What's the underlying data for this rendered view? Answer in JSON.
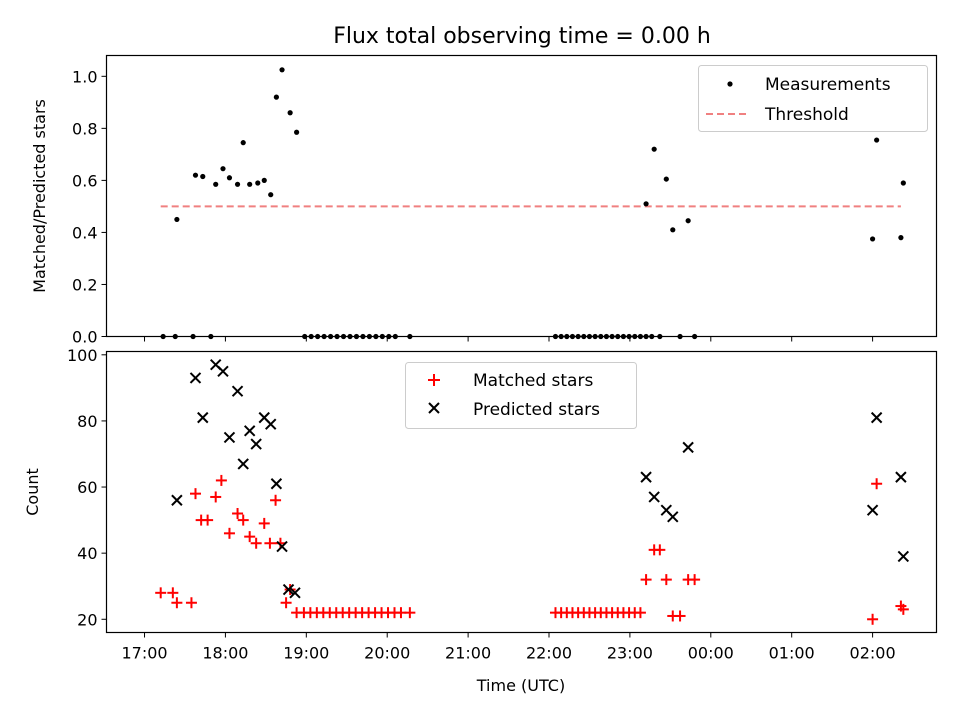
{
  "chart_data": [
    {
      "type": "scatter",
      "title": "Flux total observing time = 0.00 h",
      "ylabel": "Matched/Predicted stars",
      "xlabel": "",
      "x_unit": "hours since 17:00 UTC",
      "xlim": [
        -0.47,
        9.79
      ],
      "ylim": [
        0,
        1.08
      ],
      "yticks": [
        0.0,
        0.2,
        0.4,
        0.6,
        0.8,
        1.0
      ],
      "ytick_labels": [
        "0.0",
        "0.2",
        "0.4",
        "0.6",
        "0.8",
        "1.0"
      ],
      "legend": {
        "position": "top-right",
        "entries": [
          "Measurements",
          "Threshold"
        ]
      },
      "threshold": {
        "name": "Threshold",
        "value": 0.5,
        "x_range": [
          0.2,
          9.35
        ],
        "color": "#f08080"
      },
      "series": [
        {
          "name": "Measurements",
          "color": "#000000",
          "points": [
            [
              0.23,
              0.0
            ],
            [
              0.38,
              0.0
            ],
            [
              0.4,
              0.45
            ],
            [
              0.6,
              0.0
            ],
            [
              0.63,
              0.62
            ],
            [
              0.72,
              0.615
            ],
            [
              0.82,
              0.0
            ],
            [
              0.88,
              0.585
            ],
            [
              0.97,
              0.645
            ],
            [
              1.05,
              0.61
            ],
            [
              1.15,
              0.585
            ],
            [
              1.22,
              0.745
            ],
            [
              1.3,
              0.585
            ],
            [
              1.4,
              0.59
            ],
            [
              1.48,
              0.6
            ],
            [
              1.56,
              0.545
            ],
            [
              1.63,
              0.92
            ],
            [
              1.7,
              1.025
            ],
            [
              1.8,
              0.86
            ],
            [
              1.88,
              0.785
            ],
            [
              1.98,
              0.0
            ],
            [
              2.06,
              0.0
            ],
            [
              2.14,
              0.0
            ],
            [
              2.22,
              0.0
            ],
            [
              2.3,
              0.0
            ],
            [
              2.38,
              0.0
            ],
            [
              2.46,
              0.0
            ],
            [
              2.54,
              0.0
            ],
            [
              2.62,
              0.0
            ],
            [
              2.7,
              0.0
            ],
            [
              2.78,
              0.0
            ],
            [
              2.86,
              0.0
            ],
            [
              2.94,
              0.0
            ],
            [
              3.02,
              0.0
            ],
            [
              3.1,
              0.0
            ],
            [
              3.28,
              0.0
            ],
            [
              5.08,
              0.0
            ],
            [
              5.15,
              0.0
            ],
            [
              5.22,
              0.0
            ],
            [
              5.29,
              0.0
            ],
            [
              5.36,
              0.0
            ],
            [
              5.43,
              0.0
            ],
            [
              5.5,
              0.0
            ],
            [
              5.57,
              0.0
            ],
            [
              5.64,
              0.0
            ],
            [
              5.71,
              0.0
            ],
            [
              5.78,
              0.0
            ],
            [
              5.85,
              0.0
            ],
            [
              5.92,
              0.0
            ],
            [
              5.99,
              0.0
            ],
            [
              6.06,
              0.0
            ],
            [
              6.13,
              0.0
            ],
            [
              6.2,
              0.0
            ],
            [
              6.27,
              0.0
            ],
            [
              6.2,
              0.51
            ],
            [
              6.3,
              0.72
            ],
            [
              6.37,
              0.0
            ],
            [
              6.45,
              0.605
            ],
            [
              6.53,
              0.41
            ],
            [
              6.62,
              0.0
            ],
            [
              6.72,
              0.445
            ],
            [
              6.8,
              0.0
            ],
            [
              9.0,
              0.375
            ],
            [
              9.05,
              0.755
            ],
            [
              9.35,
              0.38
            ],
            [
              9.38,
              0.59
            ]
          ]
        }
      ]
    },
    {
      "type": "scatter",
      "title": "",
      "xlabel": "Time (UTC)",
      "ylabel": "Count",
      "x_unit": "hours since 17:00 UTC",
      "xlim": [
        -0.47,
        9.79
      ],
      "ylim": [
        16,
        101
      ],
      "yticks": [
        20,
        40,
        60,
        80,
        100
      ],
      "ytick_labels": [
        "20",
        "40",
        "60",
        "80",
        "100"
      ],
      "xticks": [
        0,
        1,
        2,
        3,
        4,
        5,
        6,
        7,
        8,
        9
      ],
      "xtick_labels": [
        "17:00",
        "18:00",
        "19:00",
        "20:00",
        "21:00",
        "22:00",
        "23:00",
        "00:00",
        "01:00",
        "02:00"
      ],
      "legend": {
        "position": "top-center",
        "entries": [
          "Matched stars",
          "Predicted stars"
        ]
      },
      "series": [
        {
          "name": "Matched stars",
          "marker": "plus",
          "color": "#ff0000",
          "points": [
            [
              0.2,
              28
            ],
            [
              0.35,
              28
            ],
            [
              0.4,
              25
            ],
            [
              0.58,
              25
            ],
            [
              0.63,
              58
            ],
            [
              0.7,
              50
            ],
            [
              0.78,
              50
            ],
            [
              0.88,
              57
            ],
            [
              0.95,
              62
            ],
            [
              1.05,
              46
            ],
            [
              1.15,
              52
            ],
            [
              1.22,
              50
            ],
            [
              1.3,
              45
            ],
            [
              1.38,
              43
            ],
            [
              1.48,
              49
            ],
            [
              1.55,
              43
            ],
            [
              1.62,
              56
            ],
            [
              1.68,
              43
            ],
            [
              1.75,
              25
            ],
            [
              1.8,
              29
            ],
            [
              1.88,
              22
            ],
            [
              1.97,
              22
            ],
            [
              2.05,
              22
            ],
            [
              2.13,
              22
            ],
            [
              2.21,
              22
            ],
            [
              2.29,
              22
            ],
            [
              2.37,
              22
            ],
            [
              2.45,
              22
            ],
            [
              2.53,
              22
            ],
            [
              2.61,
              22
            ],
            [
              2.69,
              22
            ],
            [
              2.77,
              22
            ],
            [
              2.85,
              22
            ],
            [
              2.93,
              22
            ],
            [
              3.01,
              22
            ],
            [
              3.09,
              22
            ],
            [
              3.17,
              22
            ],
            [
              3.28,
              22
            ],
            [
              5.08,
              22
            ],
            [
              5.15,
              22
            ],
            [
              5.22,
              22
            ],
            [
              5.29,
              22
            ],
            [
              5.36,
              22
            ],
            [
              5.43,
              22
            ],
            [
              5.5,
              22
            ],
            [
              5.57,
              22
            ],
            [
              5.64,
              22
            ],
            [
              5.71,
              22
            ],
            [
              5.78,
              22
            ],
            [
              5.85,
              22
            ],
            [
              5.92,
              22
            ],
            [
              5.99,
              22
            ],
            [
              6.06,
              22
            ],
            [
              6.13,
              22
            ],
            [
              6.2,
              32
            ],
            [
              6.3,
              41
            ],
            [
              6.37,
              41
            ],
            [
              6.45,
              32
            ],
            [
              6.53,
              21
            ],
            [
              6.62,
              21
            ],
            [
              6.72,
              32
            ],
            [
              6.8,
              32
            ],
            [
              9.0,
              20
            ],
            [
              9.05,
              61
            ],
            [
              9.35,
              24
            ],
            [
              9.38,
              23
            ]
          ]
        },
        {
          "name": "Predicted stars",
          "marker": "x",
          "color": "#000000",
          "points": [
            [
              0.4,
              56
            ],
            [
              0.63,
              93
            ],
            [
              0.72,
              81
            ],
            [
              0.88,
              97
            ],
            [
              0.97,
              95
            ],
            [
              1.05,
              75
            ],
            [
              1.15,
              89
            ],
            [
              1.22,
              67
            ],
            [
              1.3,
              77
            ],
            [
              1.38,
              73
            ],
            [
              1.48,
              81
            ],
            [
              1.56,
              79
            ],
            [
              1.63,
              61
            ],
            [
              1.7,
              42
            ],
            [
              1.78,
              29
            ],
            [
              1.86,
              28
            ],
            [
              6.2,
              63
            ],
            [
              6.3,
              57
            ],
            [
              6.45,
              53
            ],
            [
              6.53,
              51
            ],
            [
              6.72,
              72
            ],
            [
              9.0,
              53
            ],
            [
              9.05,
              81
            ],
            [
              9.35,
              63
            ],
            [
              9.38,
              39
            ]
          ]
        }
      ]
    }
  ]
}
